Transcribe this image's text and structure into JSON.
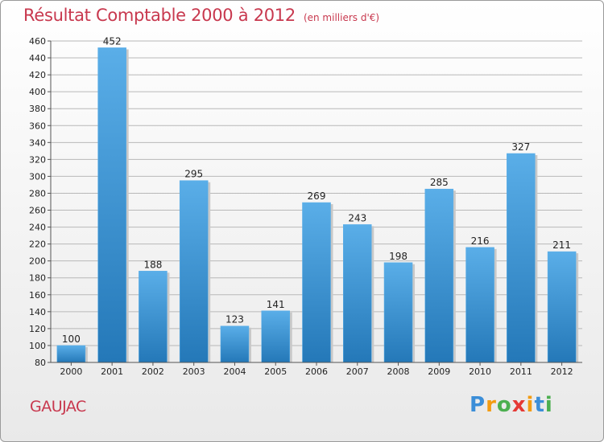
{
  "chart_data": {
    "type": "bar",
    "title": "Résultat Comptable 2000 à 2012",
    "subtitle": "(en milliers d'€)",
    "categories": [
      "2000",
      "2001",
      "2002",
      "2003",
      "2004",
      "2005",
      "2006",
      "2007",
      "2008",
      "2009",
      "2010",
      "2011",
      "2012"
    ],
    "values": [
      100,
      452,
      188,
      295,
      123,
      141,
      269,
      243,
      198,
      285,
      216,
      327,
      211
    ],
    "ylim": [
      80,
      460
    ],
    "ytick_step": 20,
    "grid": true,
    "xlabel": "",
    "ylabel": ""
  },
  "commune": "GAUJAC",
  "logo": {
    "letters": [
      "P",
      "r",
      "o",
      "x",
      "i",
      "t",
      "i"
    ],
    "colors": [
      "#3b8ed8",
      "#f39c12",
      "#4caf50",
      "#e53935",
      "#f39c12",
      "#3b8ed8",
      "#4caf50"
    ]
  },
  "colors": {
    "title": "#c8384e",
    "bar_light": "#5aaee8",
    "bar_dark": "#2478b8"
  }
}
